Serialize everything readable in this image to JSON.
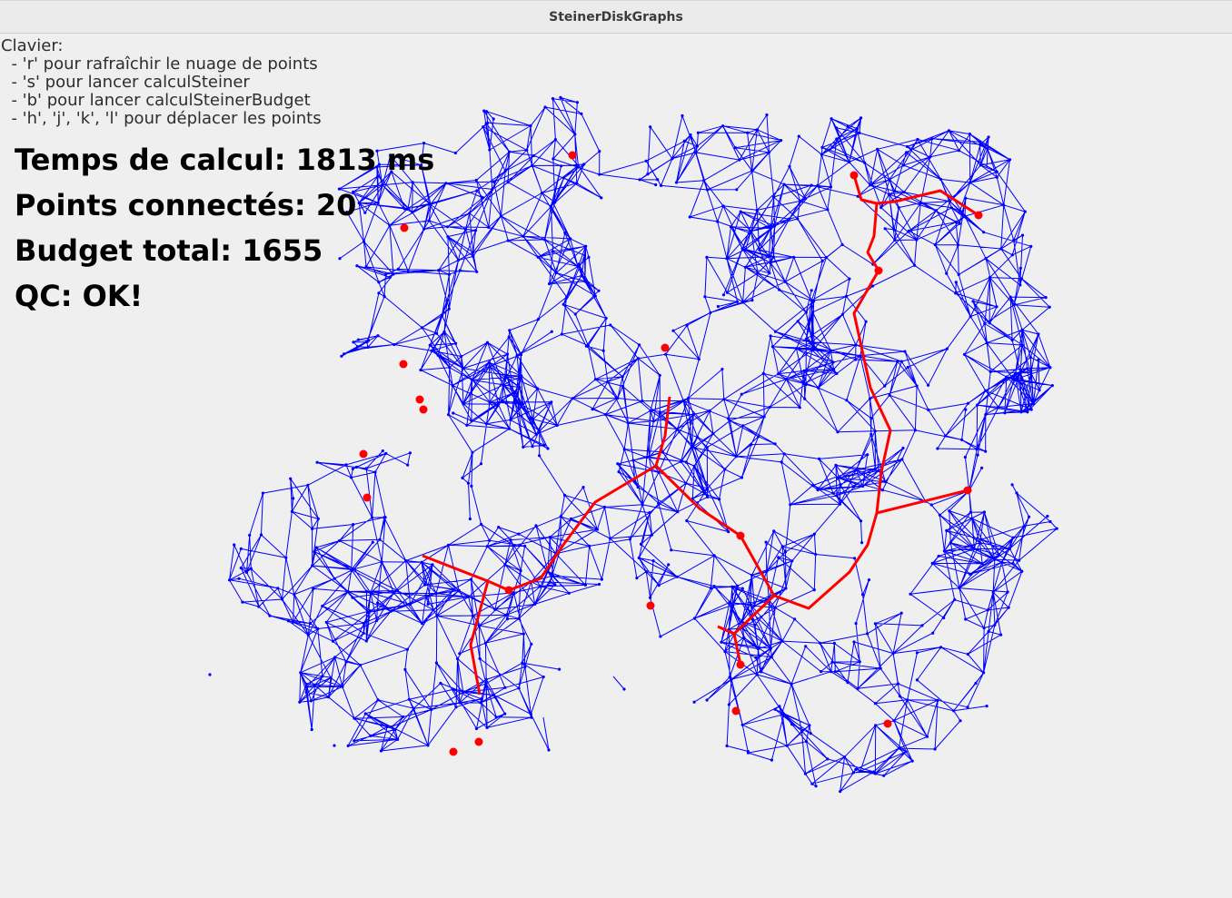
{
  "window": {
    "title": "SteinerDiskGraphs"
  },
  "help": {
    "heading": "Clavier:",
    "lines": [
      "  - 'r' pour rafraîchir le nuage de points",
      "  - 's' pour lancer calculSteiner",
      "  - 'b' pour lancer calculSteinerBudget",
      "  - 'h', 'j', 'k', 'l' pour déplacer les points"
    ]
  },
  "stats": {
    "time": "Temps de calcul: 1813 ms",
    "connected": "Points connectés: 20",
    "budget": "Budget total: 1655",
    "qc": "QC: OK!"
  },
  "colors": {
    "graph_edges": "#0000ff",
    "steiner_tree": "#ff0000",
    "background": "#efefef"
  }
}
